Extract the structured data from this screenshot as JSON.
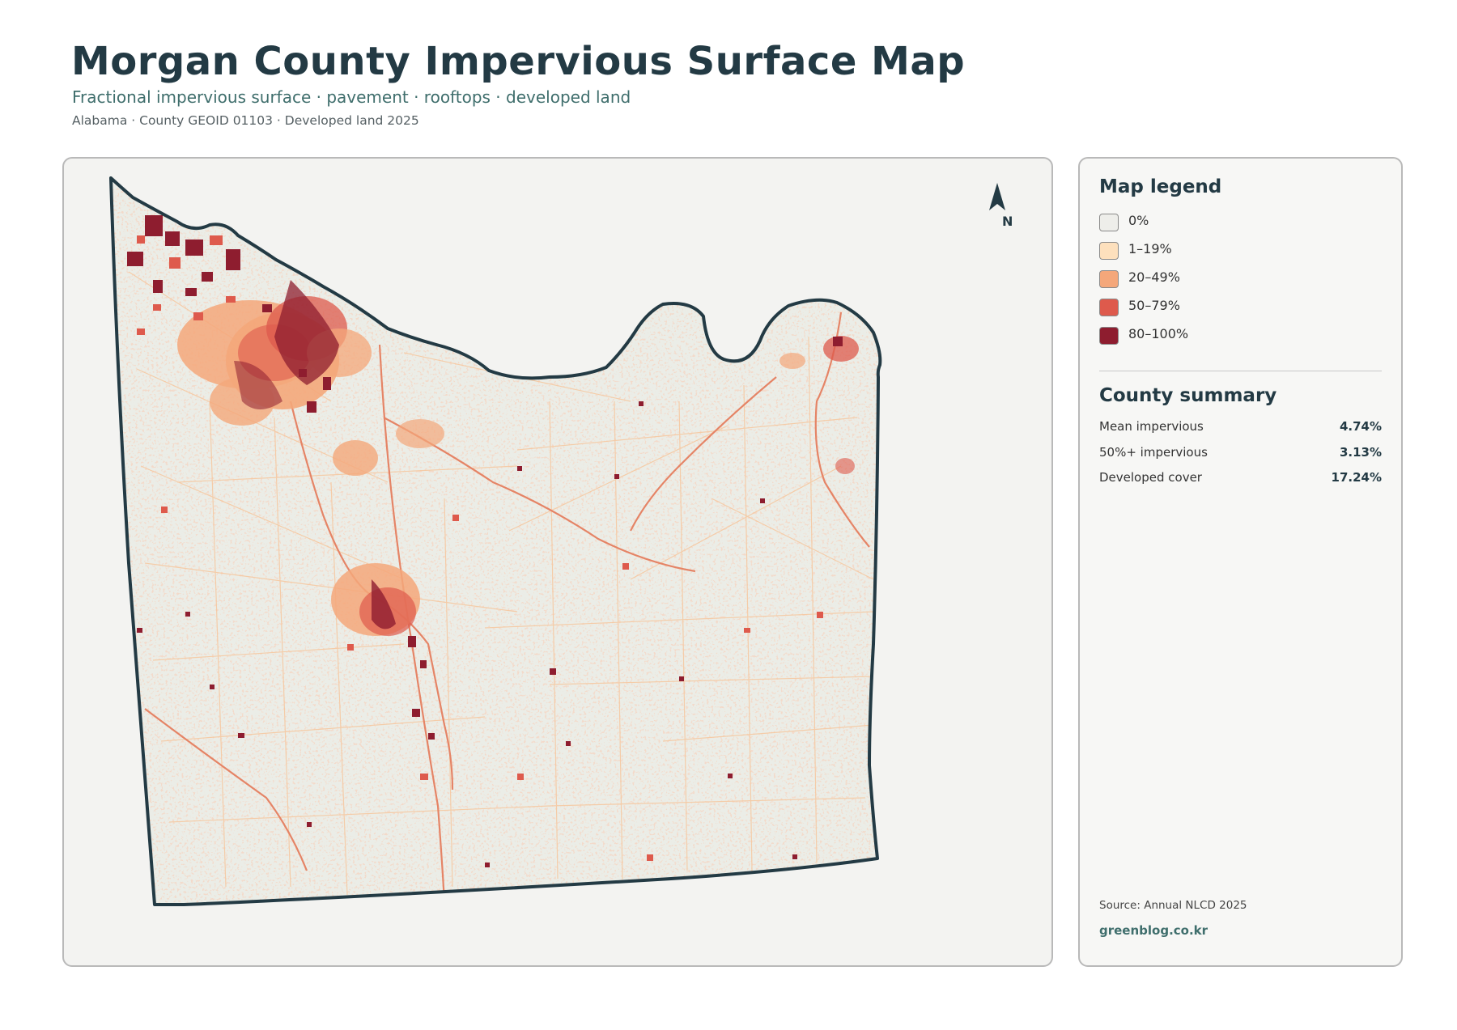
{
  "header": {
    "title": "Morgan County Impervious Surface Map",
    "subtitle": "Fractional impervious surface · pavement · rooftops · developed land",
    "meta": "Alabama · County GEOID 01103 · Developed land 2025"
  },
  "map": {
    "north_label": "N",
    "colors": {
      "background": "#f3f3f1",
      "county_fill": "#ebede7",
      "boundary": "#233a44"
    }
  },
  "legend": {
    "title": "Map legend",
    "items": [
      {
        "label": "0%",
        "color": "#eeeeea"
      },
      {
        "label": "1–19%",
        "color": "#fde0bd"
      },
      {
        "label": "20–49%",
        "color": "#f4a77a"
      },
      {
        "label": "50–79%",
        "color": "#de5a4c"
      },
      {
        "label": "80–100%",
        "color": "#8e1d2f"
      }
    ]
  },
  "summary": {
    "title": "County summary",
    "rows": [
      {
        "label": "Mean impervious",
        "value": "4.74%"
      },
      {
        "label": "50%+ impervious",
        "value": "3.13%"
      },
      {
        "label": "Developed cover",
        "value": "17.24%"
      }
    ]
  },
  "footer": {
    "source": "Source: Annual NLCD 2025",
    "brand": "greenblog.co.kr"
  }
}
